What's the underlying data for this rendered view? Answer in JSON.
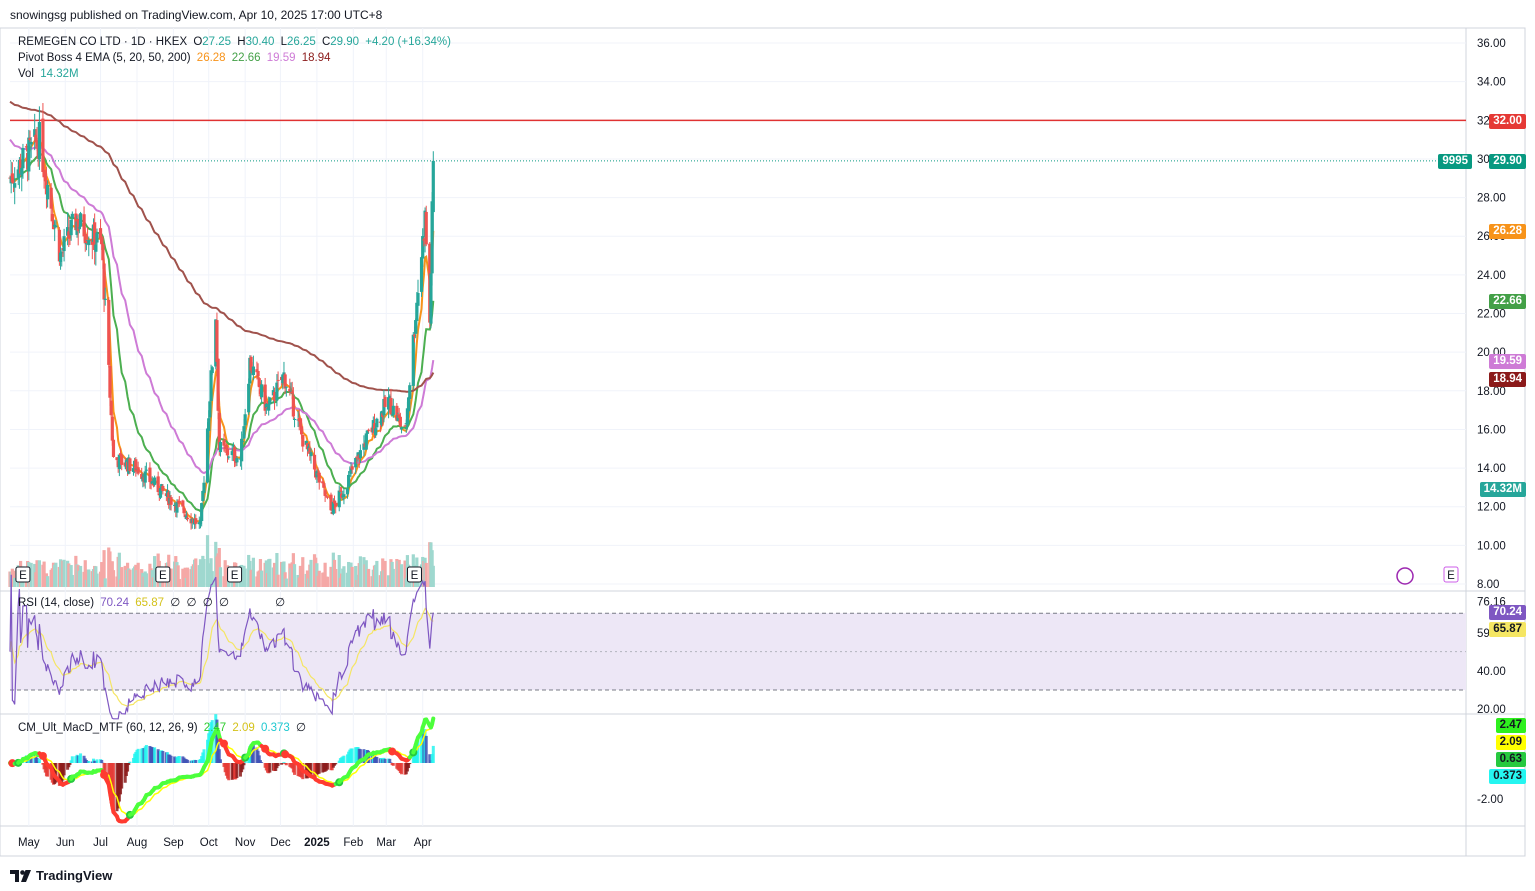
{
  "header": {
    "published": "snowingsg published on TradingView.com, Apr 10, 2025 17:00 UTC+8"
  },
  "legend": {
    "symbol": "REMEGEN CO LTD · 1D · HKEX",
    "open_label": "O",
    "open": "27.25",
    "high_label": "H",
    "high": "30.40",
    "low_label": "L",
    "low": "26.25",
    "close_label": "C",
    "close": "29.90",
    "change": "+4.20 (+16.34%)",
    "ema_label": "Pivot Boss 4 EMA (5, 20, 50, 200)",
    "ema_values": [
      "26.28",
      "22.66",
      "19.59",
      "18.94"
    ],
    "vol_label": "Vol",
    "vol_value": "14.32M",
    "rsi_label": "RSI (14, close)",
    "rsi_value": "70.24",
    "rsi_ma": "65.87",
    "rsi_extra": [
      "∅",
      "∅",
      "∅",
      "∅",
      "∅"
    ],
    "macd_label": "CM_Ult_MacD_MTF (60, 12, 26, 9)",
    "macd_values": [
      "2.47",
      "2.09",
      "0.373"
    ],
    "macd_extra": "∅"
  },
  "colors": {
    "up": "#26a69a",
    "down": "#ef5350",
    "ema5": "#f7931a",
    "ema20": "#4caf50",
    "ema50": "#ce7bd6",
    "ema200": "#a0524c",
    "resistance": "#e03232",
    "rsi": "#7e57c2",
    "rsi_ma": "#f5e663",
    "macd_up": "#4cff3c",
    "macd_down": "#ff3b30",
    "signal": "#ffff00"
  },
  "price_axis": {
    "ticks": [
      "36.00",
      "34.00",
      "32.00",
      "30.00",
      "28.00",
      "26.00",
      "24.00",
      "22.00",
      "20.00",
      "18.00",
      "16.00",
      "14.00",
      "12.00",
      "10.00",
      "8.00"
    ],
    "badges": [
      {
        "label": "32.00",
        "color": "#e53935"
      },
      {
        "label": "29.90",
        "prefix": "9995",
        "color": "#089981"
      },
      {
        "label": "26.28",
        "color": "#f7931a"
      },
      {
        "label": "22.66",
        "color": "#43a047"
      },
      {
        "label": "19.59",
        "color": "#ce7bd6"
      },
      {
        "label": "18.94",
        "color": "#8b1a1a"
      },
      {
        "label": "14.32M",
        "color": "#26a69a"
      }
    ]
  },
  "rsi_axis": {
    "ticks": [
      "76.16",
      "59.70",
      "40.00",
      "20.00"
    ],
    "badges": [
      {
        "label": "70.24",
        "color": "#7e57c2"
      },
      {
        "label": "65.87",
        "color": "#f5e663",
        "text": "#131722"
      }
    ]
  },
  "macd_axis": {
    "ticks": [
      "-2.00"
    ],
    "badges": [
      {
        "label": "2.47",
        "color": "#2ef01e",
        "text": "#131722"
      },
      {
        "label": "2.09",
        "color": "#ffff00",
        "text": "#131722"
      },
      {
        "label": "0.63",
        "color": "#27c93f",
        "text": "#131722"
      },
      {
        "label": "0.373",
        "color": "#25f5f0",
        "text": "#131722"
      }
    ]
  },
  "x_axis": {
    "labels": [
      "May",
      "Jun",
      "Jul",
      "Aug",
      "Sep",
      "Oct",
      "Nov",
      "Dec",
      "2025",
      "Feb",
      "Mar",
      "Apr"
    ]
  },
  "earnings_markers": [
    "E",
    "E",
    "E",
    "E",
    "E"
  ],
  "footer": {
    "brand": "TradingView"
  },
  "chart_data": {
    "type": "candlestick",
    "title": "REMEGEN CO LTD · 1D · HKEX",
    "x": [
      "2024-04-15",
      "2024-05-01",
      "2024-06-01",
      "2024-07-01",
      "2024-08-01",
      "2024-09-01",
      "2024-10-01",
      "2024-11-01",
      "2024-12-01",
      "2025-01-01",
      "2025-02-01",
      "2025-03-01",
      "2025-04-01",
      "2025-04-10"
    ],
    "close_anchor_dates": [
      "2024-04-15",
      "2024-05-10",
      "2024-05-28",
      "2024-06-10",
      "2024-07-02",
      "2024-07-12",
      "2024-08-01",
      "2024-08-27",
      "2024-09-24",
      "2024-10-07",
      "2024-10-10",
      "2024-10-28",
      "2024-11-05",
      "2024-11-20",
      "2024-12-04",
      "2024-12-20",
      "2025-01-13",
      "2025-01-23",
      "2025-02-12",
      "2025-03-03",
      "2025-03-17",
      "2025-03-26",
      "2025-04-03",
      "2025-04-07",
      "2025-04-10"
    ],
    "close_anchor_values": [
      29.0,
      31.0,
      25.0,
      26.8,
      25.5,
      14.5,
      14.0,
      12.5,
      11.0,
      22.0,
      15.0,
      14.5,
      19.5,
      17.0,
      18.8,
      15.5,
      11.8,
      12.8,
      15.5,
      17.5,
      15.8,
      22.0,
      27.0,
      21.5,
      29.9
    ],
    "last_candle": {
      "open": 27.25,
      "high": 30.4,
      "low": 26.25,
      "close": 29.9,
      "volume": "14.32M"
    },
    "ema_last": {
      "ema5": 26.28,
      "ema20": 22.66,
      "ema50": 19.59,
      "ema200": 18.94
    },
    "resistance_level": 32.0,
    "ylim": [
      8,
      36
    ],
    "rsi_last": 70.24,
    "rsi_ma_last": 65.87,
    "rsi_levels": [
      70,
      30
    ],
    "macd_last": {
      "macd": 2.47,
      "signal": 2.09,
      "hist": 0.373
    },
    "grid": true
  }
}
